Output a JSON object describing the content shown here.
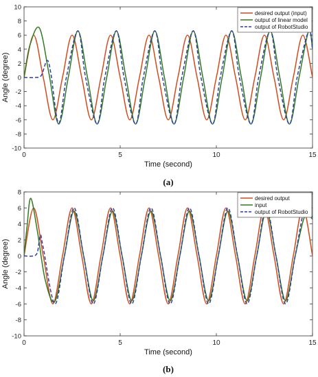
{
  "chart_data": [
    {
      "type": "line",
      "panel_label": "(a)",
      "xlabel": "Time (second)",
      "ylabel": "Angle (degree)",
      "xlim": [
        0,
        15
      ],
      "ylim": [
        -10,
        10
      ],
      "xticks": [
        0,
        5,
        10,
        15
      ],
      "yticks": [
        -10,
        -8,
        -6,
        -4,
        -2,
        0,
        2,
        4,
        6,
        8,
        10
      ],
      "grid": false,
      "legend_position": "top-right",
      "period_s": 2.0,
      "series": [
        {
          "name": "desired output (input)",
          "color": "#d24a1a",
          "style": "solid",
          "x": [
            0,
            0.5,
            1.0,
            1.5,
            2.0,
            2.5,
            3.0,
            3.5,
            4.0,
            4.5,
            5.0,
            5.5,
            6.0,
            6.5,
            7.0,
            7.5,
            8.0,
            8.5,
            9.0,
            9.5,
            10.0,
            10.5,
            11.0,
            11.5,
            12.0,
            12.5,
            13.0,
            13.5,
            14.0,
            14.5,
            15.0
          ],
          "y": [
            0,
            6,
            0,
            -6,
            0,
            6,
            0,
            -6,
            0,
            6,
            0,
            -6,
            0,
            6,
            0,
            -6,
            0,
            6,
            0,
            -6,
            0,
            6,
            0,
            -6,
            0,
            6,
            0,
            -6,
            0,
            6,
            0
          ]
        },
        {
          "name": "output of linear model",
          "color": "#2f7a1f",
          "style": "solid",
          "x": [
            0,
            0.3,
            0.8,
            1.3,
            1.8,
            2.3,
            2.8,
            3.3,
            3.8,
            4.3,
            4.8,
            5.3,
            5.8,
            6.3,
            6.8,
            7.3,
            7.8,
            8.3,
            8.8,
            9.3,
            9.8,
            10.3,
            10.8,
            11.3,
            11.8,
            12.3,
            12.8,
            13.3,
            13.8,
            14.3,
            14.8,
            15.0
          ],
          "y": [
            0,
            4.5,
            7.0,
            0.5,
            -6.6,
            0.0,
            6.6,
            0.0,
            -6.6,
            0.0,
            6.6,
            0.0,
            -6.6,
            0.0,
            6.6,
            0.0,
            -6.6,
            0.0,
            6.6,
            0.0,
            -6.6,
            0.0,
            6.6,
            0.0,
            -6.6,
            0.0,
            6.6,
            0.0,
            -6.6,
            0.0,
            6.6,
            4.0
          ]
        },
        {
          "name": "output of RobotStudio",
          "color": "#2a3ca8",
          "style": "dashed",
          "x": [
            0,
            0.6,
            0.9,
            1.2,
            1.4,
            1.8,
            2.2,
            2.8,
            3.2,
            3.8,
            4.2,
            4.8,
            5.2,
            5.8,
            6.2,
            6.8,
            7.2,
            7.8,
            8.2,
            8.8,
            9.2,
            9.8,
            10.2,
            10.8,
            11.2,
            11.8,
            12.2,
            12.8,
            13.2,
            13.8,
            14.2,
            14.8,
            15.0
          ],
          "y": [
            0,
            0,
            0.3,
            2.4,
            0.5,
            -6.5,
            0.0,
            6.6,
            0.0,
            -6.6,
            0.0,
            6.6,
            0.0,
            -6.6,
            0.0,
            6.6,
            0.0,
            -6.6,
            0.0,
            6.6,
            0.0,
            -6.6,
            0.0,
            6.6,
            0.0,
            -6.6,
            0.0,
            6.6,
            0.0,
            -6.6,
            0.0,
            6.6,
            4.0
          ]
        }
      ]
    },
    {
      "type": "line",
      "panel_label": "(b)",
      "xlabel": "Time (second)",
      "ylabel": "Angle (degree)",
      "xlim": [
        0,
        15
      ],
      "ylim": [
        -10,
        8
      ],
      "xticks": [
        0,
        5,
        10,
        15
      ],
      "yticks": [
        -10,
        -8,
        -6,
        -4,
        -2,
        0,
        2,
        4,
        6,
        8
      ],
      "grid": false,
      "legend_position": "top-right",
      "period_s": 2.0,
      "series": [
        {
          "name": "desired output",
          "color": "#d24a1a",
          "style": "solid",
          "x": [
            0,
            0.5,
            1.0,
            1.5,
            2.0,
            2.5,
            3.0,
            3.5,
            4.0,
            4.5,
            5.0,
            5.5,
            6.0,
            6.5,
            7.0,
            7.5,
            8.0,
            8.5,
            9.0,
            9.5,
            10.0,
            10.5,
            11.0,
            11.5,
            12.0,
            12.5,
            13.0,
            13.5,
            14.0,
            14.5,
            15.0
          ],
          "y": [
            0,
            6,
            0,
            -6,
            0,
            6,
            0,
            -6,
            0,
            6,
            0,
            -6,
            0,
            6,
            0,
            -6,
            0,
            6,
            0,
            -6,
            0,
            6,
            0,
            -6,
            0,
            6,
            0,
            -6,
            0,
            6,
            0
          ]
        },
        {
          "name": "input",
          "color": "#2f7a1f",
          "style": "solid",
          "x": [
            0,
            0.15,
            0.35,
            0.7,
            1.1,
            1.6,
            2.1,
            2.6,
            3.1,
            3.6,
            4.1,
            4.6,
            5.1,
            5.6,
            6.1,
            6.6,
            7.1,
            7.6,
            8.1,
            8.6,
            9.1,
            9.6,
            10.1,
            10.6,
            11.1,
            11.6,
            12.1,
            12.6,
            13.1,
            13.6,
            14.1,
            14.6,
            15.0
          ],
          "y": [
            0,
            3.5,
            7.2,
            3.0,
            -3.0,
            -5.7,
            0.0,
            5.6,
            0.0,
            -5.6,
            0.0,
            5.6,
            0.0,
            -5.6,
            0.0,
            5.6,
            0.0,
            -5.6,
            0.0,
            5.6,
            0.0,
            -5.6,
            0.0,
            5.6,
            0.0,
            -5.6,
            0.0,
            5.6,
            0.0,
            -5.6,
            0.0,
            5.0,
            4.6
          ]
        },
        {
          "name": "output of RobotStudio",
          "color": "#2a3ca8",
          "style": "dashed",
          "x": [
            0,
            0.5,
            0.7,
            0.85,
            1.0,
            1.6,
            2.1,
            2.6,
            3.1,
            3.6,
            4.1,
            4.6,
            5.1,
            5.6,
            6.1,
            6.6,
            7.1,
            7.6,
            8.1,
            8.6,
            9.1,
            9.6,
            10.1,
            10.6,
            11.1,
            11.6,
            12.1,
            12.6,
            13.1,
            13.6,
            14.1,
            14.6,
            15.0
          ],
          "y": [
            0,
            0,
            0.5,
            2.6,
            1.0,
            -6.0,
            0.0,
            6.0,
            0.0,
            -6.0,
            0.0,
            6.0,
            0.0,
            -6.0,
            0.0,
            6.0,
            0.0,
            -6.0,
            0.0,
            6.0,
            0.0,
            -6.0,
            0.0,
            6.0,
            0.0,
            -6.0,
            0.0,
            6.0,
            0.0,
            -6.0,
            0.0,
            6.0,
            4.8
          ]
        }
      ]
    }
  ]
}
